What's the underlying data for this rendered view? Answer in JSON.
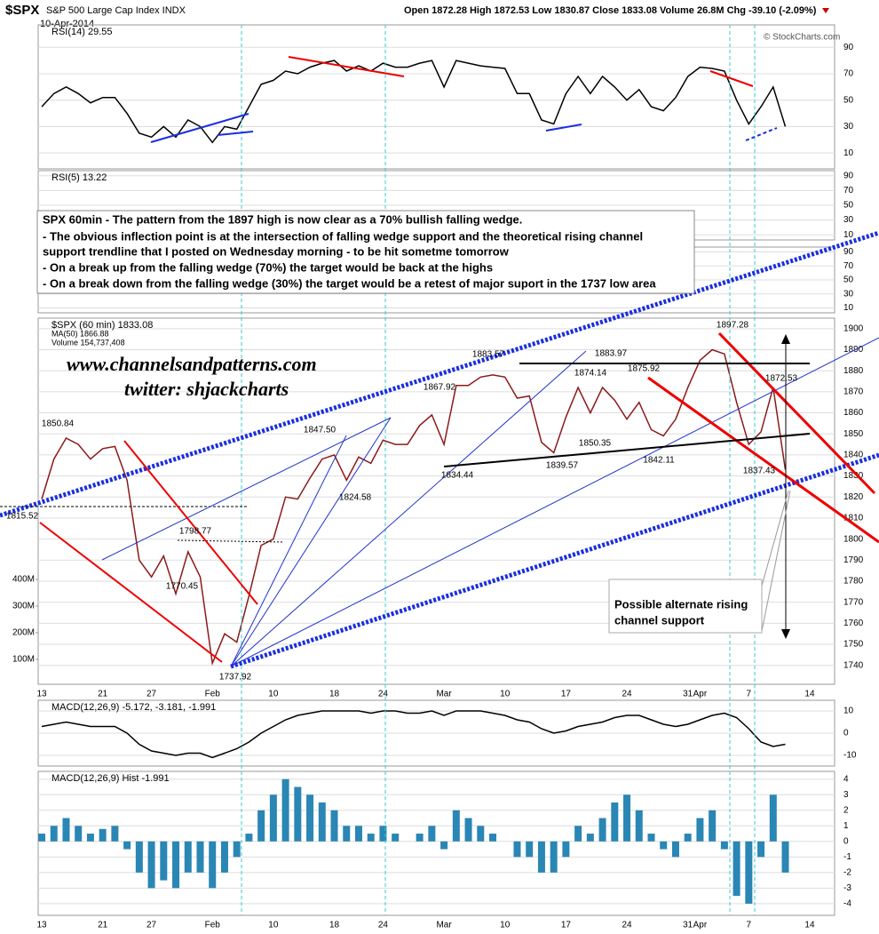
{
  "header": {
    "symbol": "$SPX",
    "name": "S&P 500 Large Cap Index INDX",
    "date": "10-Apr-2014",
    "quote": "Open 1872.28  High 1872.53  Low 1830.87  Close 1833.08  Volume 26.8M  Chg -39.10 (-2.09%)",
    "credit": "© StockCharts.com"
  },
  "annotations": {
    "box": [
      "SPX 60min - The pattern from the 1897 high is now clear as a 70% bullish falling wedge.",
      "- The obvious inflection point is at the intersection of falling wedge support and the theoretical rising channel",
      "support trendline that I posted on Wednesday morning - to be hit sometme tomorrow",
      "- On a break up from the falling wedge (70%) the target would be back at the highs",
      "- On a break down from the falling wedge (30%) the target would be a retest of major suport in the 1737 low area"
    ],
    "site": "www.channelsandpatterns.com",
    "twitter": "twitter: shjackcharts",
    "callout": [
      "Possible alternate rising",
      "channel support"
    ],
    "price_labels": [
      "1850.84",
      "1815.52",
      "1798.77",
      "1770.45",
      "1737.92",
      "1847.50",
      "1824.58",
      "1867.92",
      "1883.57",
      "1834.44",
      "1874.14",
      "1850.35",
      "1839.57",
      "1883.97",
      "1875.92",
      "1842.11",
      "1897.28",
      "1872.53",
      "1837.43"
    ]
  },
  "chart_data": [
    {
      "type": "line",
      "legend": [
        "RSI(14) 29.55"
      ],
      "ylim": [
        -2,
        107
      ],
      "yticks": [
        10,
        30,
        50,
        70,
        90
      ],
      "series": [
        {
          "color": "#000000",
          "values": [
            45,
            55,
            60,
            55,
            48,
            52,
            52,
            40,
            25,
            22,
            30,
            22,
            35,
            30,
            18,
            30,
            28,
            45,
            62,
            65,
            72,
            70,
            75,
            78,
            80,
            72,
            76,
            72,
            78,
            75,
            75,
            78,
            80,
            60,
            80,
            78,
            76,
            75,
            74,
            55,
            55,
            35,
            32,
            55,
            68,
            55,
            68,
            60,
            50,
            58,
            45,
            42,
            52,
            68,
            75,
            74,
            72,
            50,
            32,
            45,
            60,
            30,
            null,
            null
          ]
        }
      ]
    },
    {
      "type": "line",
      "legend": [
        "RSI(5) 13.22"
      ],
      "ylim": [
        3,
        97
      ],
      "yticks": [
        10,
        30,
        50,
        70,
        90
      ],
      "series": []
    },
    {
      "type": "line",
      "legend": [],
      "ylim": [
        3,
        97
      ],
      "yticks": [
        10,
        30,
        50,
        70,
        90
      ],
      "series": []
    },
    {
      "type": "line",
      "legend": [
        "$SPX (60 min) 1833.08",
        "MA(50) 1866.88",
        "Volume 154,737,408"
      ],
      "categories": [
        "13",
        null,
        null,
        null,
        null,
        "21",
        null,
        null,
        null,
        "27",
        null,
        null,
        null,
        null,
        "Feb",
        null,
        null,
        null,
        null,
        "10",
        null,
        null,
        null,
        null,
        "18",
        null,
        null,
        null,
        "24",
        null,
        null,
        null,
        null,
        "Mar",
        null,
        null,
        null,
        null,
        "10",
        null,
        null,
        null,
        null,
        "17",
        null,
        null,
        null,
        null,
        "24",
        null,
        null,
        null,
        null,
        "31",
        "Apr",
        null,
        null,
        null,
        "7",
        null,
        null,
        null,
        null,
        "14"
      ],
      "ylim": [
        1731,
        1905
      ],
      "yticks": [
        1740,
        1750,
        1760,
        1770,
        1780,
        1790,
        1800,
        1810,
        1820,
        1830,
        1840,
        1850,
        1860,
        1870,
        1880,
        1890,
        1900
      ],
      "y2lim": [
        0,
        1380000000
      ],
      "y2ticks": [
        {
          "value": 100000000,
          "label": "100M"
        },
        {
          "value": 200000000,
          "label": "200M"
        },
        {
          "value": 300000000,
          "label": "300M"
        },
        {
          "value": 400000000,
          "label": "400M"
        }
      ],
      "series": [
        {
          "color": "#8b1a1a",
          "values": [
            1819,
            1838,
            1848,
            1845,
            1838,
            1843,
            1844,
            1828,
            1790,
            1782,
            1792,
            1774,
            1794,
            1782,
            1741,
            1755,
            1751,
            1773,
            1797,
            1800,
            1820,
            1819,
            1829,
            1838,
            1840,
            1828,
            1839,
            1836,
            1847,
            1845,
            1845,
            1854,
            1859,
            1845,
            1873,
            1873,
            1877,
            1878,
            1877,
            1867,
            1868,
            1846,
            1841,
            1858,
            1872,
            1860,
            1872,
            1866,
            1857,
            1865,
            1852,
            1849,
            1857,
            1872,
            1885,
            1890,
            1888,
            1865,
            1845,
            1851,
            1872,
            1833,
            null,
            null
          ]
        }
      ]
    },
    {
      "type": "line",
      "legend": [
        "MACD(12,26,9) -5.172, -3.181, -1.991"
      ],
      "ylim": [
        -14.8,
        14.8
      ],
      "yticks": [
        -10,
        0,
        10
      ],
      "series": [
        {
          "color": "#000000",
          "values": [
            3,
            4,
            5,
            4,
            3,
            3,
            3,
            0,
            -5,
            -8,
            -9,
            -10,
            -9,
            -9,
            -11,
            -9,
            -7,
            -4,
            0,
            3,
            6,
            8,
            9,
            10,
            10,
            10,
            10,
            9,
            10,
            10,
            9,
            9,
            10,
            8,
            10,
            10,
            10,
            9,
            8,
            6,
            5,
            2,
            0,
            1,
            3,
            4,
            5,
            7,
            8,
            8,
            6,
            4,
            3,
            4,
            6,
            8,
            9,
            7,
            2,
            -4,
            -6,
            -5,
            null,
            null
          ]
        }
      ]
    },
    {
      "type": "bar",
      "legend": [
        "MACD(12,26,9) Hist -1.991"
      ],
      "ylim": [
        -4.75,
        4.5
      ],
      "yticks": [
        -4,
        -3,
        -2,
        -1,
        0,
        1,
        2,
        3,
        4
      ],
      "categories": [
        "13",
        null,
        null,
        null,
        null,
        "21",
        null,
        null,
        null,
        "27",
        null,
        null,
        null,
        null,
        "Feb",
        null,
        null,
        null,
        null,
        "10",
        null,
        null,
        null,
        null,
        "18",
        null,
        null,
        null,
        "24",
        null,
        null,
        null,
        null,
        "Mar",
        null,
        null,
        null,
        null,
        "10",
        null,
        null,
        null,
        null,
        "17",
        null,
        null,
        null,
        null,
        "24",
        null,
        null,
        null,
        null,
        "31",
        "Apr",
        null,
        null,
        null,
        "7",
        null,
        null,
        null,
        null,
        "14"
      ],
      "series": [
        {
          "color": "#2a86b4",
          "values": [
            0.5,
            1,
            1.5,
            1,
            0.5,
            0.8,
            1,
            -0.5,
            -2,
            -3,
            -2.5,
            -3,
            -2,
            -2,
            -3,
            -2,
            -1,
            0.5,
            2,
            3,
            4,
            3.5,
            3,
            2.5,
            2,
            1,
            1,
            0.5,
            1,
            0.5,
            0,
            0.5,
            1,
            -0.5,
            2,
            1.5,
            1,
            0.5,
            0,
            -1,
            -1,
            -2,
            -2,
            -1,
            1,
            0.5,
            1.5,
            2.5,
            3,
            2,
            0.5,
            -0.5,
            -1,
            0.5,
            1.5,
            2,
            -0.5,
            -3.5,
            -4,
            -1,
            3,
            -2,
            null,
            null
          ]
        }
      ]
    }
  ]
}
